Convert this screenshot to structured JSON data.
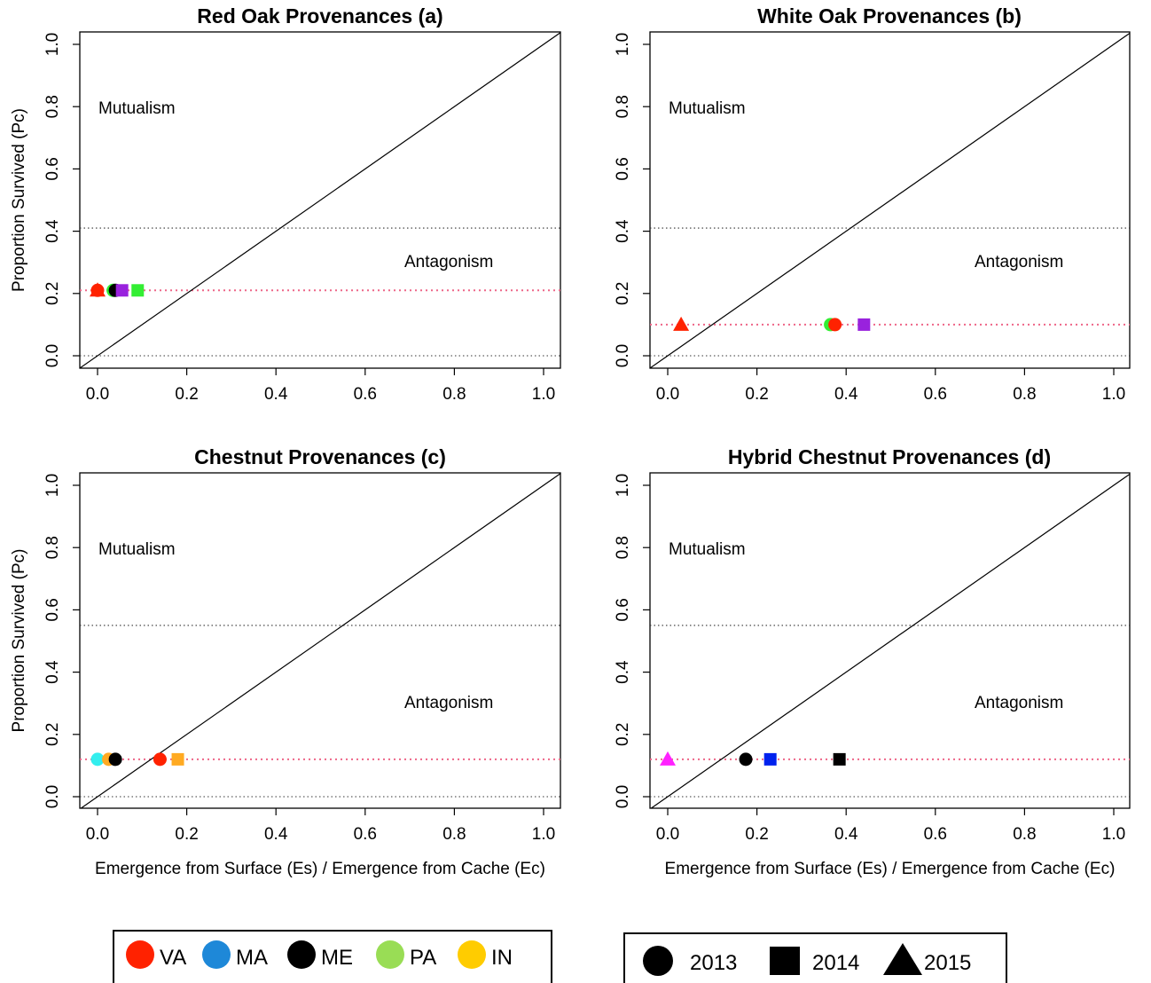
{
  "chart_data": [
    {
      "type": "scatter",
      "title": "Red Oak Provenances (a)",
      "xlabel": "",
      "ylabel": "Proportion Survived (Pc)",
      "xlim": [
        0,
        1
      ],
      "ylim": [
        0,
        1
      ],
      "x_ticks": [
        "0.0",
        "0.2",
        "0.4",
        "0.6",
        "0.8",
        "1.0"
      ],
      "y_ticks": [
        "0.0",
        "0.2",
        "0.4",
        "0.6",
        "0.8",
        "1.0"
      ],
      "regions": {
        "upper": "Mutualism",
        "lower": "Antagonism"
      },
      "reference_lines": {
        "diagonal": "y = x",
        "upper_dotted_y": 0.41,
        "lower_dotted_y": 0.0,
        "pc_line_y": 0.21
      },
      "points": [
        {
          "x": 0.0,
          "y": 0.21,
          "region": "VA",
          "year": "2015",
          "color": "#ff2200",
          "shape": "triangle"
        },
        {
          "x": 0.0,
          "y": 0.21,
          "region": "VA",
          "year": "2013",
          "color": "#ff2200",
          "shape": "circle"
        },
        {
          "x": 0.035,
          "y": 0.21,
          "region": "PA",
          "year": "2013",
          "color": "#33ee33",
          "shape": "circle"
        },
        {
          "x": 0.04,
          "y": 0.21,
          "region": "ME",
          "year": "2013",
          "color": "#000000",
          "shape": "circle"
        },
        {
          "x": 0.055,
          "y": 0.21,
          "region": "",
          "year": "2014",
          "color": "#9922dd",
          "shape": "square"
        },
        {
          "x": 0.09,
          "y": 0.21,
          "region": "PA",
          "year": "2014",
          "color": "#33ee33",
          "shape": "square"
        }
      ]
    },
    {
      "type": "scatter",
      "title": "White Oak Provenances (b)",
      "xlabel": "",
      "ylabel": "",
      "xlim": [
        0,
        1
      ],
      "ylim": [
        0,
        1
      ],
      "x_ticks": [
        "0.0",
        "0.2",
        "0.4",
        "0.6",
        "0.8",
        "1.0"
      ],
      "y_ticks": [
        "0.0",
        "0.2",
        "0.4",
        "0.6",
        "0.8",
        "1.0"
      ],
      "regions": {
        "upper": "Mutualism",
        "lower": "Antagonism"
      },
      "reference_lines": {
        "diagonal": "y = x",
        "upper_dotted_y": 0.41,
        "lower_dotted_y": 0.0,
        "pc_line_y": 0.1
      },
      "points": [
        {
          "x": 0.03,
          "y": 0.1,
          "region": "VA",
          "year": "2015",
          "color": "#ff2200",
          "shape": "triangle"
        },
        {
          "x": 0.365,
          "y": 0.1,
          "region": "PA",
          "year": "2013",
          "color": "#33ee33",
          "shape": "circle"
        },
        {
          "x": 0.375,
          "y": 0.1,
          "region": "VA",
          "year": "2013",
          "color": "#ff2200",
          "shape": "circle"
        },
        {
          "x": 0.44,
          "y": 0.1,
          "region": "",
          "year": "2014",
          "color": "#9922dd",
          "shape": "square"
        }
      ]
    },
    {
      "type": "scatter",
      "title": "Chestnut Provenances (c)",
      "xlabel": "Emergence from Surface (Es) / Emergence from Cache (Ec)",
      "ylabel": "Proportion Survived (Pc)",
      "xlim": [
        0,
        1
      ],
      "ylim": [
        0,
        1
      ],
      "x_ticks": [
        "0.0",
        "0.2",
        "0.4",
        "0.6",
        "0.8",
        "1.0"
      ],
      "y_ticks": [
        "0.0",
        "0.2",
        "0.4",
        "0.6",
        "0.8",
        "1.0"
      ],
      "regions": {
        "upper": "Mutualism",
        "lower": "Antagonism"
      },
      "reference_lines": {
        "diagonal": "y = x",
        "upper_dotted_y": 0.55,
        "lower_dotted_y": 0.0,
        "pc_line_y": 0.12
      },
      "points": [
        {
          "x": 0.0,
          "y": 0.12,
          "region": "",
          "year": "2013",
          "color": "#33eeee",
          "shape": "circle"
        },
        {
          "x": 0.025,
          "y": 0.12,
          "region": "IN",
          "year": "2013",
          "color": "#ffaa22",
          "shape": "circle"
        },
        {
          "x": 0.04,
          "y": 0.12,
          "region": "ME",
          "year": "2013",
          "color": "#000000",
          "shape": "circle"
        },
        {
          "x": 0.14,
          "y": 0.12,
          "region": "VA",
          "year": "2013",
          "color": "#ff2200",
          "shape": "circle"
        },
        {
          "x": 0.18,
          "y": 0.12,
          "region": "IN",
          "year": "2014",
          "color": "#ffaa22",
          "shape": "square"
        }
      ]
    },
    {
      "type": "scatter",
      "title": "Hybrid Chestnut Provenances (d)",
      "xlabel": "Emergence from Surface (Es) / Emergence from Cache (Ec)",
      "ylabel": "",
      "xlim": [
        0,
        1
      ],
      "ylim": [
        0,
        1
      ],
      "x_ticks": [
        "0.0",
        "0.2",
        "0.4",
        "0.6",
        "0.8",
        "1.0"
      ],
      "y_ticks": [
        "0.0",
        "0.2",
        "0.4",
        "0.6",
        "0.8",
        "1.0"
      ],
      "regions": {
        "upper": "Mutualism",
        "lower": "Antagonism"
      },
      "reference_lines": {
        "diagonal": "y = x",
        "upper_dotted_y": 0.55,
        "lower_dotted_y": 0.0,
        "pc_line_y": 0.12
      },
      "points": [
        {
          "x": 0.0,
          "y": 0.12,
          "region": "",
          "year": "2015",
          "color": "#ff22ff",
          "shape": "triangle"
        },
        {
          "x": 0.175,
          "y": 0.12,
          "region": "ME",
          "year": "2013",
          "color": "#000000",
          "shape": "circle"
        },
        {
          "x": 0.23,
          "y": 0.12,
          "region": "MA",
          "year": "2014",
          "color": "#0022ee",
          "shape": "square"
        },
        {
          "x": 0.385,
          "y": 0.12,
          "region": "ME",
          "year": "2014",
          "color": "#000000",
          "shape": "square"
        }
      ]
    }
  ],
  "legends": {
    "regions": [
      {
        "label": "VA",
        "color": "#ff2200"
      },
      {
        "label": "MA",
        "color": "#1e88d8"
      },
      {
        "label": "ME",
        "color": "#000000"
      },
      {
        "label": "PA",
        "color": "#99dd55"
      },
      {
        "label": "IN",
        "color": "#ffcc00"
      }
    ],
    "years": [
      {
        "label": "2013",
        "shape": "circle"
      },
      {
        "label": "2014",
        "shape": "square"
      },
      {
        "label": "2015",
        "shape": "triangle"
      }
    ]
  }
}
